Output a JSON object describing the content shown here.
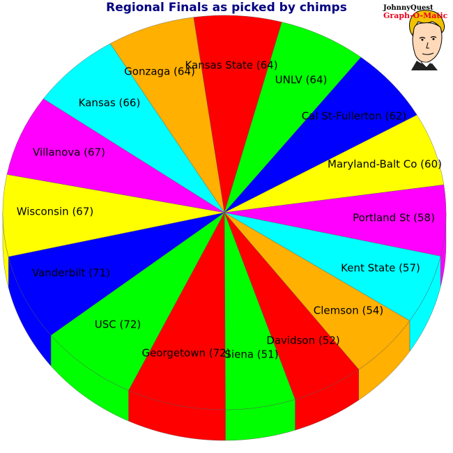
{
  "chart_data": {
    "type": "pie",
    "title": "Regional Finals as picked by chimps",
    "slices": [
      {
        "label": "Kansas State (64)",
        "value": 64,
        "color": "#ff0000"
      },
      {
        "label": "UNLV (64)",
        "value": 64,
        "color": "#00ff00"
      },
      {
        "label": "Cal St-Fullerton (62)",
        "value": 62,
        "color": "#0000ff"
      },
      {
        "label": "Maryland-Balt Co (60)",
        "value": 60,
        "color": "#ffff00"
      },
      {
        "label": "Portland St (58)",
        "value": 58,
        "color": "#ff00ff"
      },
      {
        "label": "Kent State (57)",
        "value": 57,
        "color": "#00ffff"
      },
      {
        "label": "Clemson (54)",
        "value": 54,
        "color": "#ffb000"
      },
      {
        "label": "Davidson (52)",
        "value": 52,
        "color": "#ff0000"
      },
      {
        "label": "Siena (51)",
        "value": 51,
        "color": "#00ff00"
      },
      {
        "label": "Georgetown (72)",
        "value": 72,
        "color": "#ff0000"
      },
      {
        "label": "USC (72)",
        "value": 72,
        "color": "#00ff00"
      },
      {
        "label": "Vanderbilt (71)",
        "value": 71,
        "color": "#0000ff"
      },
      {
        "label": "Wisconsin (67)",
        "value": 67,
        "color": "#ffff00"
      },
      {
        "label": "Villanova (67)",
        "value": 67,
        "color": "#ff00ff"
      },
      {
        "label": "Kansas (66)",
        "value": 66,
        "color": "#00ffff"
      },
      {
        "label": "Gonzaga (64)",
        "value": 64,
        "color": "#ffb000"
      }
    ]
  },
  "logo": {
    "line1": "JohnnyQuest",
    "line2": "Graph-O-Matic"
  }
}
